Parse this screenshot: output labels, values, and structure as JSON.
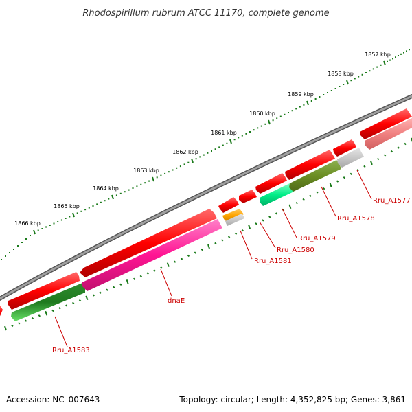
{
  "title": "Rhodospirillum rubrum ATCC 11170, complete genome",
  "footer": {
    "accession": "Accession: NC_007643",
    "topology": "Topology: circular; Length: 4,352,825 bp; Genes: 3,861"
  },
  "kbp_ticks": [
    "1857 kbp",
    "1858 kbp",
    "1859 kbp",
    "1860 kbp",
    "1861 kbp",
    "1862 kbp",
    "1863 kbp",
    "1864 kbp",
    "1865 kbp",
    "1866 kbp"
  ],
  "gene_labels": [
    "Rru_A1577",
    "Rru_A1578",
    "Rru_A1579",
    "Rru_A1580",
    "Rru_A1581",
    "dnaE",
    "Rru_A1583"
  ],
  "colors": {
    "backbone": "#808080",
    "forward_gene": "#ff0000",
    "reverse_red": "#ee3333",
    "reverse_pink": "#f08080",
    "olive": "#6b8e23",
    "grey_gene": "#c0c0c0",
    "teal": "#00ee88",
    "orange": "#ffa500",
    "magenta": "#ff1493",
    "green": "#32cd32",
    "tick": "#1a7a1a",
    "label": "#cc0000"
  }
}
